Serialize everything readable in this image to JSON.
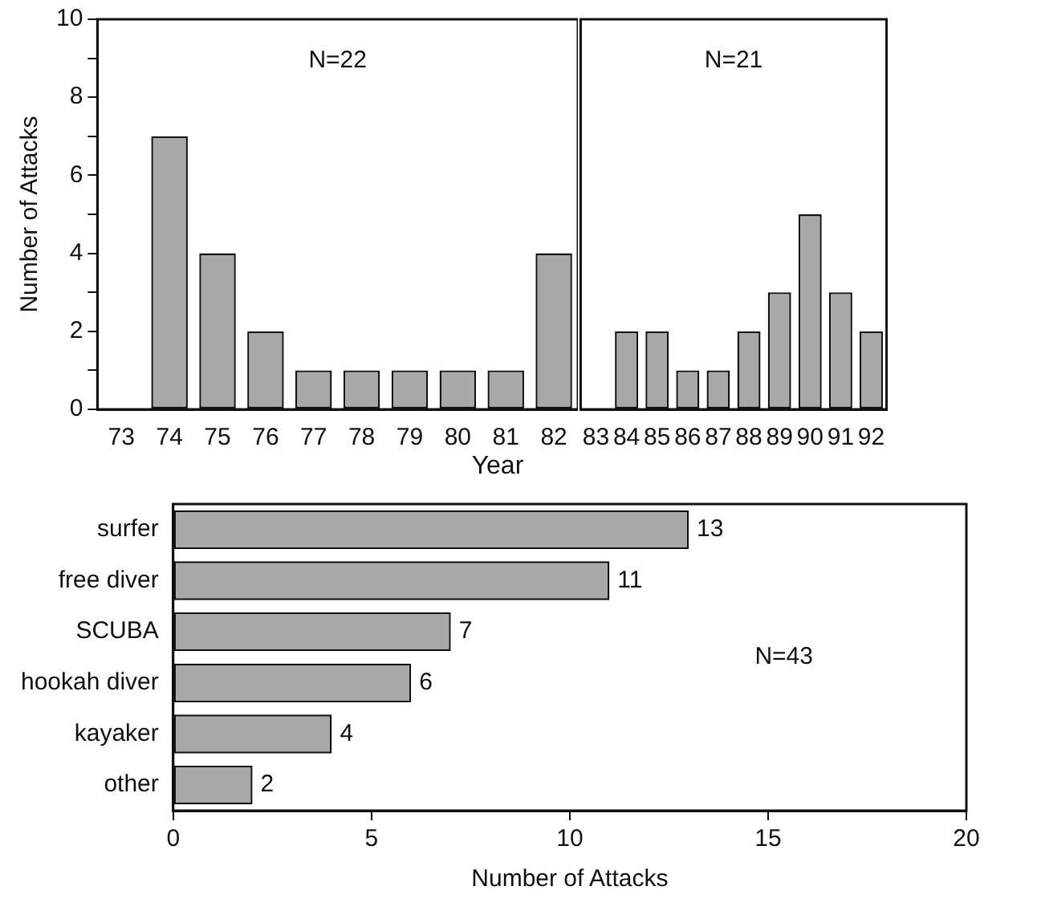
{
  "chart_data": [
    {
      "type": "bar",
      "categories": [
        "73",
        "74",
        "75",
        "76",
        "77",
        "78",
        "79",
        "80",
        "81",
        "82"
      ],
      "values": [
        0,
        7,
        4,
        2,
        1,
        1,
        1,
        1,
        1,
        4
      ],
      "color": "#a8a8a8",
      "ylabel": "Number of Attacks",
      "xlabel": "Year",
      "ylim": [
        0,
        10
      ],
      "yticks": [
        0,
        {
          "value": 1,
          "label": null
        },
        2,
        {
          "value": 3,
          "label": null
        },
        4,
        {
          "value": 5,
          "label": null
        },
        6,
        {
          "value": 7,
          "label": null
        },
        8,
        {
          "value": 9,
          "label": null
        },
        10
      ],
      "annotations": [
        "N=22"
      ],
      "grid": false,
      "legend": false
    },
    {
      "type": "bar",
      "categories": [
        "83",
        "84",
        "85",
        "86",
        "87",
        "88",
        "89",
        "90",
        "91",
        "92"
      ],
      "values": [
        0,
        2,
        2,
        1,
        1,
        2,
        3,
        5,
        3,
        2
      ],
      "color": "#a8a8a8",
      "ylim": [
        0,
        10
      ],
      "tick_labels": "x",
      "annotations": [
        "N=21"
      ],
      "grid": false,
      "legend": false
    },
    {
      "type": "bar",
      "orientation": "horizontal",
      "categories": [
        "surfer",
        "free diver",
        "SCUBA",
        "hookah diver",
        "kayaker",
        "other"
      ],
      "values": [
        13,
        11,
        7,
        6,
        4,
        2
      ],
      "color": "#a8a8a8",
      "xlabel": "Number of Attacks",
      "xlim": [
        0,
        20
      ],
      "xticks": [
        0,
        5,
        10,
        15,
        20
      ],
      "data_labels": true,
      "annotations": [
        "N=43"
      ],
      "grid": false,
      "legend": false
    }
  ]
}
